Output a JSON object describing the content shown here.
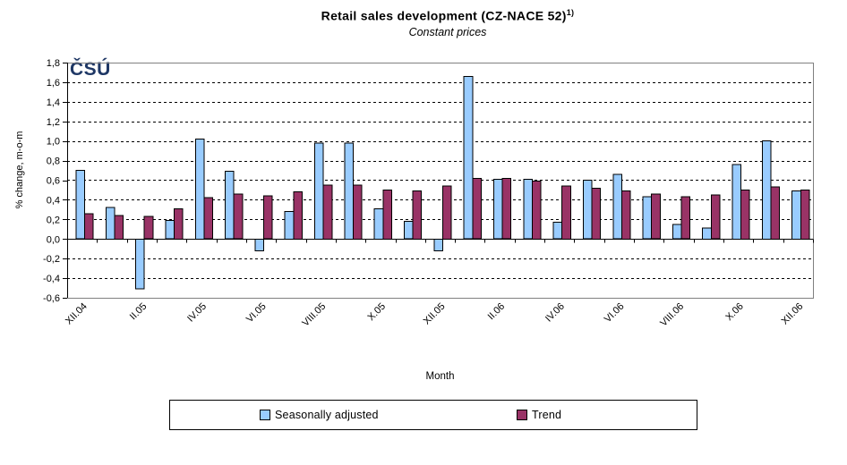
{
  "title": {
    "text": "Retail sales development (CZ-NACE 52)",
    "superscript": "1)",
    "subtitle": "Constant prices"
  },
  "logo": {
    "text": "ČSÚ",
    "color": "#1E3765"
  },
  "chart_data": {
    "type": "bar",
    "title": "Retail sales development (CZ-NACE 52)1)",
    "subtitle": "Constant prices",
    "xlabel": "Month",
    "ylabel": "% change, m-o-m",
    "ylim": [
      -0.6,
      1.8
    ],
    "ytick_step": 0.2,
    "grid": true,
    "legend_position": "bottom",
    "ytick_labels": [
      "1,8",
      "1,6",
      "1,4",
      "1,2",
      "1,0",
      "0,8",
      "0,6",
      "0,4",
      "0,2",
      "0,0",
      "-0,2",
      "-0,4",
      "-0,6"
    ],
    "categories": [
      "XII.04",
      "I.05",
      "II.05",
      "III.05",
      "IV.05",
      "V.05",
      "VI.05",
      "VII.05",
      "VIII.05",
      "IX.05",
      "X.05",
      "XI.05",
      "XII.05",
      "I.06",
      "II.06",
      "III.06",
      "IV.06",
      "V.06",
      "VI.06",
      "VII.06",
      "VIII.06",
      "IX.06",
      "X.06",
      "XI.06",
      "XII.06"
    ],
    "xtick_labels": [
      "XII.04",
      "II.05",
      "IV.05",
      "VI.05",
      "VIII.05",
      "X.05",
      "XII.05",
      "II.06",
      "IV.06",
      "VI.06",
      "VIII.06",
      "X.06",
      "XII.06"
    ],
    "xtick_every": 2,
    "series": [
      {
        "name": "Seasonally adjusted",
        "color": "#99CCFF",
        "values": [
          0.7,
          0.32,
          -0.51,
          0.19,
          1.02,
          0.69,
          -0.12,
          0.28,
          0.98,
          0.98,
          0.31,
          0.18,
          -0.12,
          1.66,
          0.61,
          0.61,
          0.17,
          0.6,
          0.66,
          0.43,
          0.15,
          0.11,
          0.76,
          1.0,
          0.49
        ]
      },
      {
        "name": "Trend",
        "color": "#993366",
        "values": [
          0.26,
          0.24,
          0.23,
          0.31,
          0.42,
          0.46,
          0.44,
          0.48,
          0.55,
          0.55,
          0.5,
          0.49,
          0.54,
          0.62,
          0.62,
          0.59,
          0.54,
          0.52,
          0.49,
          0.46,
          0.43,
          0.45,
          0.5,
          0.53,
          0.5
        ]
      }
    ],
    "colors": {
      "frame": "#808080",
      "axis": "#000000",
      "gridline": "#000000"
    }
  }
}
